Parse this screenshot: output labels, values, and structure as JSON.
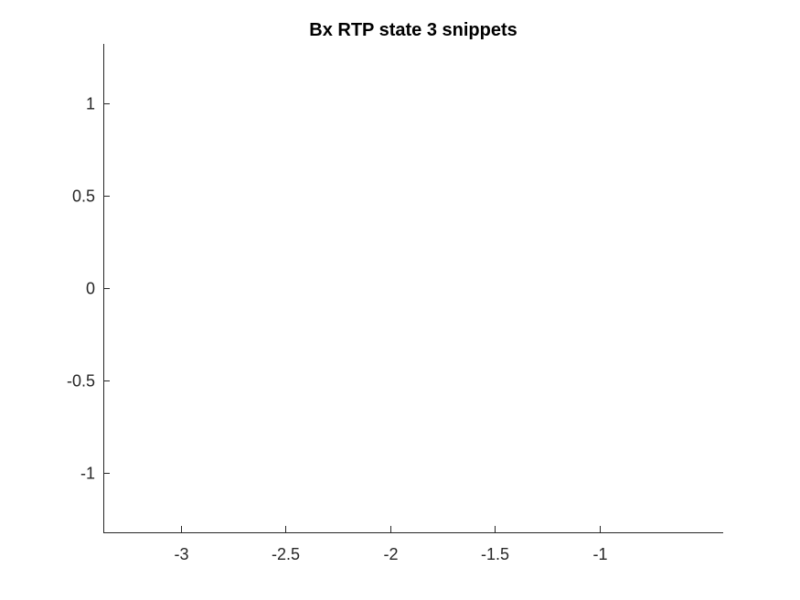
{
  "chart_data": {
    "type": "line",
    "title": "Bx  RTP state 3 snippets",
    "xlabel": "",
    "ylabel": "",
    "xlim": [
      -3.37,
      -0.41
    ],
    "ylim": [
      -1.32,
      1.32
    ],
    "xticks": [
      -3,
      -2.5,
      -2,
      -1.5,
      -1
    ],
    "xtick_labels": [
      "-3",
      "-2.5",
      "-2",
      "-1.5",
      "-1"
    ],
    "yticks": [
      1,
      0.5,
      0,
      -0.5,
      -1
    ],
    "ytick_labels": [
      "1",
      "0.5",
      "0",
      "-0.5",
      "-1"
    ],
    "grid": false,
    "series": [],
    "colors": {
      "axis": "#262626",
      "background": "#ffffff"
    }
  }
}
